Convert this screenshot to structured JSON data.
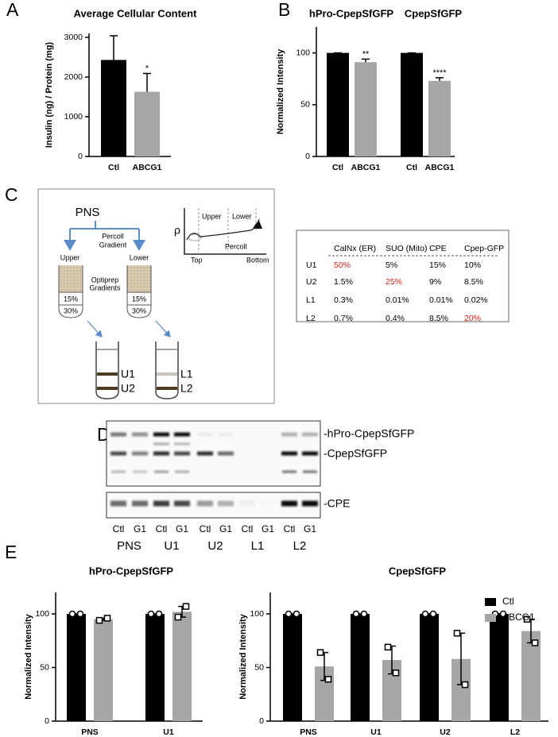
{
  "panel_labels": [
    "A",
    "B",
    "C",
    "D",
    "E"
  ],
  "chart_data": [
    {
      "type": "bar",
      "title": "Average Cellular Content",
      "ylabel": "Insulin (ng) / Protein (mg)",
      "categories": [
        "Ctl",
        "ABCG1"
      ],
      "values": [
        2430,
        1630
      ],
      "errors": [
        610,
        460
      ],
      "error_direction": "up",
      "colors": [
        "#000000",
        "#a6a6a6"
      ],
      "annotations": [
        {
          "index": 1,
          "text": "*"
        }
      ],
      "ylim": [
        0,
        3100
      ],
      "yticks": [
        0,
        1000,
        2000,
        3000
      ]
    },
    {
      "type": "bar",
      "group_titles": [
        "hPro-CpepSfGFP",
        "CpepSfGFP"
      ],
      "ylabel": "Normalized Intensity",
      "categories": [
        "Ctl",
        "ABCG1",
        "Ctl",
        "ABCG1"
      ],
      "values": [
        100,
        91,
        100,
        73
      ],
      "errors": [
        0,
        3,
        0,
        3
      ],
      "error_direction": "up",
      "colors": [
        "#000000",
        "#a6a6a6",
        "#000000",
        "#a6a6a6"
      ],
      "annotations": [
        {
          "index": 1,
          "text": "**"
        },
        {
          "index": 3,
          "text": "****"
        }
      ],
      "ylim": [
        0,
        125
      ],
      "yticks": [
        0,
        50,
        100
      ]
    },
    {
      "type": "grouped_bar",
      "title": "hPro-CpepSfGFP",
      "ylabel": "Normalized Intensity",
      "categories": [
        "PNS",
        "U1"
      ],
      "error_direction": "both",
      "series": [
        {
          "color": "#000000",
          "marker": "circle",
          "values": [
            100,
            100
          ],
          "errors": [
            0,
            0
          ],
          "points": [
            [
              100,
              100
            ],
            [
              100,
              100
            ]
          ]
        },
        {
          "color": "#a6a6a6",
          "marker": "square",
          "values": [
            95,
            102
          ],
          "errors": [
            1,
            5
          ],
          "points": [
            [
              94,
              96
            ],
            [
              97,
              107
            ]
          ]
        }
      ],
      "ylim": [
        0,
        120
      ],
      "yticks": [
        0,
        50,
        100
      ]
    },
    {
      "type": "grouped_bar",
      "title": "CpepSfGFP",
      "ylabel": "Normalized Intensity",
      "categories": [
        "PNS",
        "U1",
        "U2",
        "L2"
      ],
      "error_direction": "both",
      "legend": "upper right",
      "series": [
        {
          "name": "Ctl",
          "color": "#000000",
          "marker": "circle",
          "values": [
            100,
            100,
            100,
            100
          ],
          "errors": [
            0,
            0,
            0,
            0
          ],
          "points": [
            [
              100,
              100
            ],
            [
              100,
              100
            ],
            [
              100,
              100
            ],
            [
              100,
              100
            ]
          ]
        },
        {
          "name": "ABCG1",
          "color": "#a6a6a6",
          "marker": "square",
          "values": [
            51,
            57,
            58,
            84
          ],
          "errors": [
            13,
            13,
            24,
            11
          ],
          "points": [
            [
              64,
              39
            ],
            [
              69,
              45
            ],
            [
              82,
              34
            ],
            [
              95,
              73
            ]
          ]
        }
      ],
      "ylim": [
        0,
        120
      ],
      "yticks": [
        0,
        50,
        100
      ]
    }
  ],
  "diagram": {
    "source": "PNS",
    "step1": [
      "Percoll",
      "Gradient"
    ],
    "upper": "Upper",
    "lower": "Lower",
    "step2": [
      "Optiprep",
      "Gradients"
    ],
    "layers": [
      "15%",
      "30%"
    ],
    "fractions": [
      "U1",
      "U2",
      "L1",
      "L2"
    ],
    "inset": {
      "upper": "Upper",
      "lower": "Lower",
      "yaxis": "ρ",
      "curve": "Percoll",
      "left": "Top",
      "right": "Bottom"
    }
  },
  "table": {
    "header": [
      "CalNx (ER)",
      "SUO (Mito)",
      "CPE",
      "Cpep-GFP"
    ],
    "rows": [
      [
        "U1",
        "50%",
        "5%",
        "15%",
        "10%"
      ],
      [
        "U2",
        "1.5%",
        "25%",
        "9%",
        "8.5%"
      ],
      [
        "L1",
        "0.3%",
        "0.01%",
        "0.01%",
        "0.02%"
      ],
      [
        "L2",
        "0.7%",
        "0.4%",
        "8.5%",
        "20%"
      ]
    ],
    "highlighted": [
      [
        0,
        1
      ],
      [
        1,
        2
      ],
      [
        3,
        4
      ]
    ],
    "highlight_color": "#e0201b"
  },
  "blot": {
    "bands": [
      "-hPro-CpepSfGFP",
      "-CpepSfGFP",
      "-CPE"
    ],
    "lanes": [
      "Ctl",
      "G1",
      "Ctl",
      "G1",
      "Ctl",
      "G1",
      "Ctl",
      "G1",
      "Ctl",
      "G1"
    ],
    "groups": [
      "PNS",
      "U1",
      "U2",
      "L1",
      "L2"
    ]
  }
}
